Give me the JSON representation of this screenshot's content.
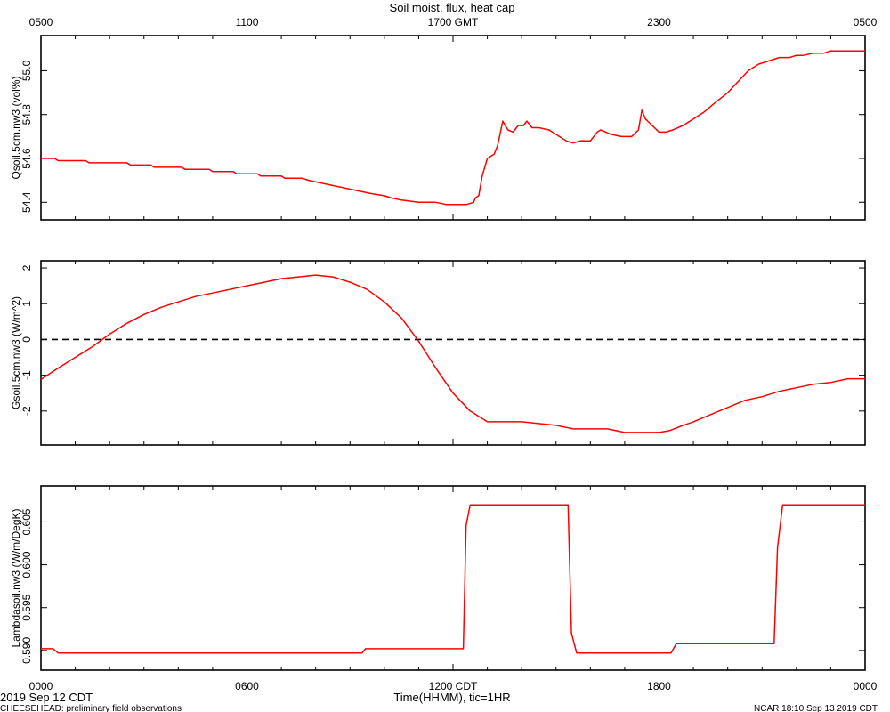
{
  "chart_data": {
    "type": "line",
    "title": "Soil moist, flux, heat cap",
    "top_axis": {
      "unit": "GMT",
      "ticks": [
        {
          "x": 0,
          "label": "0500"
        },
        {
          "x": 6,
          "label": "1100"
        },
        {
          "x": 12,
          "label": "1700 GMT"
        },
        {
          "x": 18,
          "label": "2300"
        },
        {
          "x": 24,
          "label": "0500"
        }
      ]
    },
    "bottom_axis": {
      "xlabel": "Time(HHMM), tic=1HR",
      "xlim": [
        0,
        24
      ],
      "ticks": [
        {
          "x": 0,
          "label": "0000"
        },
        {
          "x": 6,
          "label": "0600"
        },
        {
          "x": 12,
          "label": "1200 CDT"
        },
        {
          "x": 18,
          "label": "1800"
        },
        {
          "x": 24,
          "label": "0000"
        }
      ]
    },
    "panels": [
      {
        "ylabel": "Qsoil.5cm.nw3 (vol%)",
        "ylim": [
          54.32,
          55.16
        ],
        "yticks": [
          54.4,
          54.6,
          54.8,
          55.0
        ],
        "ytick_labels": [
          "54.4",
          "54.6",
          "54.8",
          "55.0"
        ],
        "series": {
          "color": "#ff0000",
          "x": [
            0,
            0.4,
            0.5,
            1.3,
            1.4,
            2.5,
            2.6,
            3.2,
            3.3,
            4.1,
            4.2,
            4.9,
            5.0,
            5.6,
            5.7,
            6.3,
            6.4,
            7.0,
            7.1,
            7.6,
            7.8,
            8.4,
            9.0,
            9.6,
            10.0,
            10.2,
            10.5,
            11.0,
            11.5,
            11.8,
            12.0,
            12.2,
            12.4,
            12.6,
            12.65,
            12.75,
            12.85,
            13.0,
            13.2,
            13.3,
            13.45,
            13.6,
            13.75,
            13.9,
            14.05,
            14.15,
            14.3,
            14.5,
            14.8,
            15.1,
            15.3,
            15.5,
            15.7,
            16.0,
            16.2,
            16.3,
            16.45,
            16.6,
            16.9,
            17.2,
            17.4,
            17.5,
            17.6,
            17.8,
            18.0,
            18.2,
            18.4,
            18.7,
            19.0,
            19.3,
            19.6,
            20.0,
            20.3,
            20.6,
            20.9,
            21.1,
            21.3,
            21.5,
            21.8,
            22.0,
            22.2,
            22.5,
            22.8,
            23.0,
            23.5,
            24.0
          ],
          "y": [
            54.6,
            54.6,
            54.59,
            54.59,
            54.58,
            54.58,
            54.57,
            54.57,
            54.56,
            54.56,
            54.55,
            54.55,
            54.54,
            54.54,
            54.53,
            54.53,
            54.52,
            54.52,
            54.51,
            54.51,
            54.5,
            54.48,
            54.46,
            54.44,
            54.43,
            54.42,
            54.41,
            54.4,
            54.4,
            54.39,
            54.39,
            54.39,
            54.39,
            54.4,
            54.42,
            54.43,
            54.52,
            54.6,
            54.62,
            54.66,
            54.77,
            54.73,
            54.72,
            54.75,
            54.75,
            54.77,
            54.74,
            54.74,
            54.73,
            54.7,
            54.68,
            54.67,
            54.68,
            54.68,
            54.72,
            54.73,
            54.72,
            54.71,
            54.7,
            54.7,
            54.73,
            54.82,
            54.78,
            54.75,
            54.72,
            54.72,
            54.73,
            54.75,
            54.78,
            54.81,
            54.85,
            54.9,
            54.95,
            55.0,
            55.03,
            55.04,
            55.05,
            55.06,
            55.06,
            55.07,
            55.07,
            55.08,
            55.08,
            55.09,
            55.09,
            55.09
          ]
        }
      },
      {
        "ylabel": "Gsoil.5cm.nw3 (W/m^2)",
        "ylim": [
          -2.95,
          2.2
        ],
        "yticks": [
          -2,
          -1,
          0,
          1,
          2
        ],
        "ytick_labels": [
          "-2",
          "-1",
          "0",
          "1",
          "2"
        ],
        "zero_line": true,
        "series": {
          "color": "#ff0000",
          "x": [
            0,
            0.5,
            1.0,
            1.5,
            2.0,
            2.5,
            3.0,
            3.5,
            4.0,
            4.5,
            5.0,
            5.5,
            6.0,
            6.5,
            7.0,
            7.5,
            8.0,
            8.5,
            9.0,
            9.5,
            10.0,
            10.5,
            11.0,
            11.5,
            12.0,
            12.5,
            13.0,
            13.5,
            14.0,
            14.5,
            15.0,
            15.5,
            16.0,
            16.5,
            17.0,
            17.5,
            18.0,
            18.3,
            18.7,
            19.0,
            19.5,
            20.0,
            20.5,
            21.0,
            21.5,
            22.0,
            22.5,
            23.0,
            23.5,
            24.0
          ],
          "y": [
            -1.12,
            -0.8,
            -0.5,
            -0.2,
            0.15,
            0.45,
            0.7,
            0.9,
            1.05,
            1.2,
            1.3,
            1.4,
            1.5,
            1.6,
            1.7,
            1.75,
            1.8,
            1.75,
            1.6,
            1.4,
            1.05,
            0.6,
            -0.05,
            -0.8,
            -1.5,
            -2.0,
            -2.3,
            -2.3,
            -2.3,
            -2.35,
            -2.4,
            -2.5,
            -2.5,
            -2.5,
            -2.6,
            -2.6,
            -2.6,
            -2.55,
            -2.4,
            -2.3,
            -2.1,
            -1.9,
            -1.7,
            -1.6,
            -1.45,
            -1.35,
            -1.25,
            -1.2,
            -1.1,
            -1.1
          ]
        }
      },
      {
        "ylabel": "Lambdasoil.nw3 (W/m/DegK)",
        "ylim": [
          0.5877,
          0.6092
        ],
        "yticks": [
          0.59,
          0.595,
          0.6,
          0.605
        ],
        "ytick_labels": [
          "0.590",
          "0.595",
          "0.600",
          "0.605"
        ],
        "series": {
          "color": "#ff0000",
          "x": [
            0,
            0.35,
            0.5,
            9.35,
            9.45,
            12.3,
            12.38,
            12.5,
            15.35,
            15.45,
            15.6,
            18.35,
            18.5,
            21.35,
            21.45,
            21.6,
            24.0
          ],
          "y": [
            0.5902,
            0.5902,
            0.5897,
            0.5897,
            0.5902,
            0.5902,
            0.6046,
            0.607,
            0.607,
            0.592,
            0.5897,
            0.5897,
            0.5908,
            0.5908,
            0.602,
            0.607,
            0.607
          ]
        }
      }
    ]
  },
  "footer": {
    "start_date": "2019 Sep 12 CDT",
    "project": "CHEESEHEAD: preliminary field observations",
    "generated": "NCAR 18:10 Sep 13 2019 CDT"
  }
}
